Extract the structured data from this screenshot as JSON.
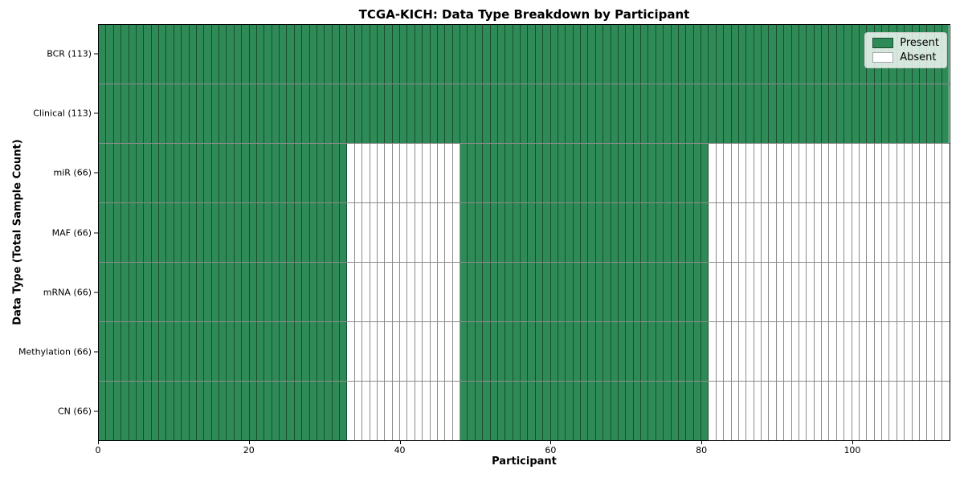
{
  "chart_data": {
    "type": "heatmap",
    "title": "TCGA-KICH: Data Type Breakdown by Participant",
    "xlabel": "Participant",
    "ylabel": "Data Type (Total Sample Count)",
    "xlim": [
      0,
      113
    ],
    "n_participants": 113,
    "x_ticks": [
      0,
      20,
      40,
      60,
      80,
      100
    ],
    "grid": true,
    "legend_position": "upper right",
    "colors": {
      "present": "#2e8b57",
      "absent": "#ffffff",
      "grid_line": "rgba(0,0,0,0.45)"
    },
    "legend": [
      {
        "label": "Present",
        "color": "#2e8b57"
      },
      {
        "label": "Absent",
        "color": "#ffffff"
      }
    ],
    "rows": [
      {
        "label": "BCR (113)",
        "total": 113,
        "present_ranges": [
          [
            0,
            113
          ]
        ]
      },
      {
        "label": "Clinical (113)",
        "total": 113,
        "present_ranges": [
          [
            0,
            113
          ]
        ]
      },
      {
        "label": "miR (66)",
        "total": 66,
        "present_ranges": [
          [
            0,
            33
          ],
          [
            48,
            81
          ]
        ]
      },
      {
        "label": "MAF (66)",
        "total": 66,
        "present_ranges": [
          [
            0,
            33
          ],
          [
            48,
            81
          ]
        ]
      },
      {
        "label": "mRNA (66)",
        "total": 66,
        "present_ranges": [
          [
            0,
            33
          ],
          [
            48,
            81
          ]
        ]
      },
      {
        "label": "Methylation (66)",
        "total": 66,
        "present_ranges": [
          [
            0,
            33
          ],
          [
            48,
            81
          ]
        ]
      },
      {
        "label": "CN (66)",
        "total": 66,
        "present_ranges": [
          [
            0,
            33
          ],
          [
            48,
            81
          ]
        ]
      }
    ]
  }
}
